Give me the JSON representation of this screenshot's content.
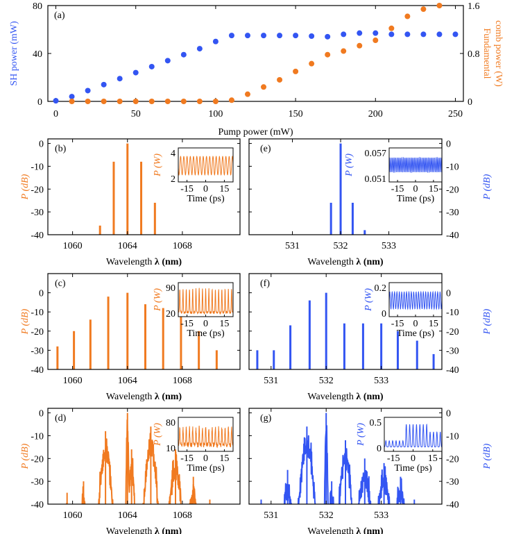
{
  "colors": {
    "sh": "#3355f2",
    "fund": "#f07a20",
    "axis": "#000000"
  },
  "chart_data": [
    {
      "id": "a",
      "type": "scatter",
      "panel_label": "(a)",
      "xlabel": "Pump power (mW)",
      "ylabel_left": "SH power (mW)",
      "ylabel_right_line1": "Fundamental",
      "ylabel_right_line2": "comb power (W)",
      "xlim": [
        -5,
        255
      ],
      "ylim_left": [
        0,
        80
      ],
      "ylim_right": [
        0,
        1.6
      ],
      "x_ticks": [
        0,
        50,
        100,
        150,
        200,
        250
      ],
      "x_tick_labels": [
        "0",
        "50",
        "100",
        "150",
        "200",
        "250"
      ],
      "y_left_ticks": [
        0,
        40,
        80
      ],
      "y_left_tick_labels": [
        "0",
        "40",
        "80"
      ],
      "y_right_ticks": [
        0,
        0.8,
        1.6
      ],
      "y_right_tick_labels": [
        "0",
        "0.8",
        "1.6"
      ],
      "series": [
        {
          "name": "SH power",
          "axis": "left",
          "color_key": "sh",
          "x": [
            0,
            10,
            20,
            30,
            40,
            50,
            60,
            70,
            80,
            90,
            100,
            110,
            120,
            130,
            140,
            150,
            160,
            170,
            180,
            190,
            200,
            210,
            220,
            230,
            240,
            250
          ],
          "y": [
            0.5,
            4,
            9,
            14,
            19,
            24,
            29,
            34,
            39,
            44,
            50,
            55,
            55,
            55,
            55,
            55,
            54.5,
            54,
            56,
            57,
            57,
            56,
            56,
            56,
            56,
            56
          ]
        },
        {
          "name": "Fundamental comb power",
          "axis": "right",
          "color_key": "fund",
          "x": [
            10,
            20,
            30,
            40,
            50,
            60,
            70,
            80,
            90,
            100,
            110,
            120,
            130,
            140,
            150,
            160,
            170,
            180,
            190,
            200,
            210,
            220,
            230,
            240
          ],
          "y": [
            0,
            0,
            0,
            0,
            0,
            0,
            0,
            0,
            0,
            0,
            0.02,
            0.12,
            0.24,
            0.36,
            0.5,
            0.63,
            0.78,
            0.84,
            0.93,
            1.02,
            1.22,
            1.42,
            1.54,
            1.6
          ]
        }
      ]
    },
    {
      "id": "b",
      "type": "bar",
      "panel_label": "(b)",
      "color_key": "fund",
      "ylabel": "P (dB)",
      "ylabel_side": "left",
      "xlabel_text": "Wavelength ",
      "xlabel_sym": "λ",
      "xlabel_unit": " (nm)",
      "xlim": [
        1058.2,
        1072.2
      ],
      "ylim": [
        -40,
        2
      ],
      "x_ticks": [
        1060,
        1064,
        1068
      ],
      "x_tick_labels": [
        "1060",
        "1064",
        "1068"
      ],
      "y_ticks": [
        0,
        -10,
        -20,
        -30,
        -40
      ],
      "y_tick_labels": [
        "0",
        "-10",
        "-20",
        "-30",
        "-40"
      ],
      "lines": [
        [
          1062,
          -36
        ],
        [
          1063,
          -8
        ],
        [
          1064,
          0
        ],
        [
          1065,
          -8
        ],
        [
          1066,
          -26
        ]
      ],
      "inset": {
        "ylabel": "P (W)",
        "y_tick_labels": [
          "4",
          "2"
        ],
        "x_tick_labels": [
          "-15",
          "0",
          "15"
        ],
        "xlabel": "Time (ps)",
        "xlim": [
          -22,
          22
        ],
        "ylim": [
          1.8,
          4.2
        ],
        "waveform": {
          "kind": "sin",
          "period": 2.6,
          "min": 2.3,
          "max": 3.6
        }
      }
    },
    {
      "id": "c",
      "type": "bar",
      "panel_label": "(c)",
      "color_key": "fund",
      "ylabel": "P (dB)",
      "ylabel_side": "left",
      "xlabel_text": "Wavelength ",
      "xlabel_sym": "λ",
      "xlabel_unit": " (nm)",
      "xlim": [
        1058.2,
        1072.2
      ],
      "ylim": [
        -40,
        10
      ],
      "x_ticks": [
        1060,
        1064,
        1068
      ],
      "x_tick_labels": [
        "1060",
        "1064",
        "1068"
      ],
      "y_ticks": [
        0,
        -10,
        -20,
        -30,
        -40
      ],
      "y_tick_labels": [
        "0",
        "-10",
        "-20",
        "-30",
        "-40"
      ],
      "lines": [
        [
          1058.9,
          -28
        ],
        [
          1060.1,
          -20
        ],
        [
          1061.3,
          -14
        ],
        [
          1062.6,
          -2
        ],
        [
          1064,
          0
        ],
        [
          1065.3,
          -6
        ],
        [
          1066.6,
          -8
        ],
        [
          1067.9,
          -12
        ],
        [
          1069.2,
          -20
        ],
        [
          1070.5,
          -30
        ]
      ],
      "inset": {
        "ylabel": "P (W)",
        "y_tick_labels": [
          "90",
          "20"
        ],
        "x_tick_labels": [
          "-15",
          "0",
          "15"
        ],
        "xlabel": "Time (ps)",
        "xlim": [
          -22,
          22
        ],
        "ylim": [
          15,
          95
        ],
        "waveform": {
          "kind": "spiky",
          "period": 2.6,
          "min": 25,
          "max": 80
        }
      }
    },
    {
      "id": "d",
      "type": "spectrum",
      "panel_label": "(d)",
      "color_key": "fund",
      "ylabel": "P (dB)",
      "ylabel_side": "left",
      "xlabel_text": "Wavelength ",
      "xlabel_sym": "λ",
      "xlabel_unit": " (nm)",
      "xlim": [
        1058.2,
        1072.2
      ],
      "ylim": [
        -40,
        2
      ],
      "x_ticks": [
        1060,
        1064,
        1068
      ],
      "x_tick_labels": [
        "1060",
        "1064",
        "1068"
      ],
      "y_ticks": [
        0,
        -10,
        -20,
        -30,
        -40
      ],
      "y_tick_labels": [
        "0",
        "-10",
        "-20",
        "-30",
        "-40"
      ],
      "peaks": [
        [
          1059.6,
          -35,
          0.25
        ],
        [
          1060.8,
          -30,
          0.35
        ],
        [
          1062.4,
          -8,
          0.55
        ],
        [
          1064,
          0,
          0.12
        ],
        [
          1064.3,
          -16,
          0.3
        ],
        [
          1065.7,
          -6,
          0.55
        ],
        [
          1067.5,
          -16,
          0.55
        ],
        [
          1068.8,
          -28,
          0.45
        ],
        [
          1070,
          -38,
          0.3
        ]
      ],
      "noise_floor": -40,
      "inset": {
        "ylabel": "P (W)",
        "y_tick_labels": [
          "80",
          "10"
        ],
        "x_tick_labels": [
          "-15",
          "0",
          "15"
        ],
        "xlabel": "Time (ps)",
        "xlim": [
          -22,
          22
        ],
        "ylim": [
          5,
          85
        ],
        "waveform": {
          "kind": "noisy",
          "period": 2.6,
          "min": 20,
          "max": 60
        }
      }
    },
    {
      "id": "e",
      "type": "bar",
      "panel_label": "(e)",
      "color_key": "sh",
      "ylabel": "P (dB)",
      "ylabel_side": "right",
      "xlabel_text": "Wavelength ",
      "xlabel_sym": "λ",
      "xlabel_unit": " (nm)",
      "xlim": [
        530.1,
        534.1
      ],
      "ylim": [
        -40,
        2
      ],
      "x_ticks": [
        531,
        532,
        533
      ],
      "x_tick_labels": [
        "531",
        "532",
        "533"
      ],
      "y_ticks": [
        0,
        -10,
        -20,
        -30,
        -40
      ],
      "y_tick_labels": [
        "0",
        "-10",
        "-20",
        "-30",
        "-40"
      ],
      "lines": [
        [
          531.8,
          -26
        ],
        [
          532,
          0
        ],
        [
          532.25,
          -26
        ],
        [
          532.5,
          -38
        ]
      ],
      "inset": {
        "ylabel": "P (W)",
        "y_tick_labels": [
          "0.057",
          "0.051"
        ],
        "x_tick_labels": [
          "-15",
          "0",
          "15"
        ],
        "xlabel": "Time (ps)",
        "xlim": [
          -22,
          22
        ],
        "ylim": [
          0.0505,
          0.0575
        ],
        "waveform": {
          "kind": "sin",
          "period": 1.3,
          "min": 0.0525,
          "max": 0.0555
        }
      }
    },
    {
      "id": "f",
      "type": "bar",
      "panel_label": "(f)",
      "color_key": "sh",
      "ylabel": "P (dB)",
      "ylabel_side": "right",
      "xlabel_text": "Wavelength ",
      "xlabel_sym": "λ",
      "xlabel_unit": " (nm)",
      "xlim": [
        530.6,
        534.1
      ],
      "ylim": [
        -40,
        10
      ],
      "x_ticks": [
        531,
        532,
        533
      ],
      "x_tick_labels": [
        "531",
        "532",
        "533"
      ],
      "y_ticks": [
        0,
        -10,
        -20,
        -30,
        -40
      ],
      "y_tick_labels": [
        "0",
        "-10",
        "-20",
        "-30",
        "-40"
      ],
      "lines": [
        [
          530.75,
          -30
        ],
        [
          531.05,
          -30
        ],
        [
          531.35,
          -17
        ],
        [
          531.7,
          -4
        ],
        [
          532,
          0
        ],
        [
          532.33,
          -16
        ],
        [
          532.67,
          -16
        ],
        [
          533,
          -16
        ],
        [
          533.3,
          -20
        ],
        [
          533.65,
          -25
        ],
        [
          533.95,
          -32
        ]
      ],
      "inset": {
        "ylabel": "P (W)",
        "y_tick_labels": [
          "0.2",
          "0"
        ],
        "x_tick_labels": [
          "-15",
          "0",
          "15"
        ],
        "xlabel": "Time (ps)",
        "xlim": [
          -22,
          22
        ],
        "ylim": [
          -0.01,
          0.21
        ],
        "waveform": {
          "kind": "sin",
          "period": 2.0,
          "min": 0.04,
          "max": 0.15
        }
      }
    },
    {
      "id": "g",
      "type": "spectrum",
      "panel_label": "(g)",
      "color_key": "sh",
      "ylabel": "P (dB)",
      "ylabel_side": "right",
      "xlabel_text": "Wavelength ",
      "xlabel_sym": "λ",
      "xlabel_unit": " (nm)",
      "xlim": [
        530.6,
        534.1
      ],
      "ylim": [
        -40,
        2
      ],
      "x_ticks": [
        531,
        532,
        533
      ],
      "x_tick_labels": [
        "531",
        "532",
        "533"
      ],
      "y_ticks": [
        0,
        -10,
        -20,
        -30,
        -40
      ],
      "y_tick_labels": [
        "0",
        "-10",
        "-20",
        "-30",
        "-40"
      ],
      "peaks": [
        [
          530.82,
          -38,
          0.02
        ],
        [
          531.3,
          -25,
          0.12
        ],
        [
          531.65,
          -6,
          0.16
        ],
        [
          532,
          0,
          0.03
        ],
        [
          532.1,
          -30,
          0.08
        ],
        [
          532.35,
          -12,
          0.14
        ],
        [
          532.7,
          -20,
          0.16
        ],
        [
          533.05,
          -22,
          0.16
        ],
        [
          533.35,
          -28,
          0.14
        ],
        [
          533.6,
          -38,
          0.05
        ]
      ],
      "noise_floor": -40,
      "inset": {
        "ylabel": "P (W)",
        "y_tick_labels": [
          "0.5",
          "0"
        ],
        "x_tick_labels": [
          "-15",
          "0",
          "15"
        ],
        "xlabel": "Time (ps)",
        "xlim": [
          -22,
          22
        ],
        "ylim": [
          -0.02,
          0.52
        ],
        "waveform": {
          "kind": "burst",
          "period": 2.6,
          "min": 0.05,
          "max": 0.45
        }
      }
    }
  ]
}
